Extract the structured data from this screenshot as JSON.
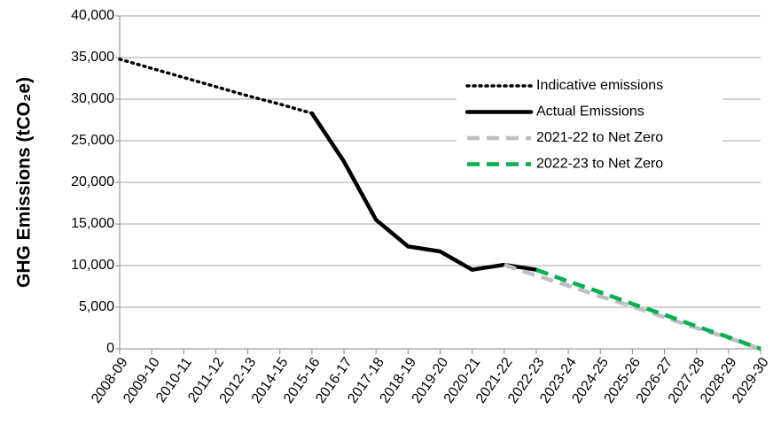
{
  "chart_data": {
    "type": "line",
    "y_label": "GHG Emissions (tCO₂e)",
    "categories": [
      "2008-09",
      "2009-10",
      "2010-11",
      "2011-12",
      "2012-13",
      "2014-15",
      "2015-16",
      "2016-17",
      "2017-18",
      "2018-19",
      "2019-20",
      "2020-21",
      "2021-22",
      "2022-23",
      "2023-24",
      "2024-25",
      "2025-26",
      "2026-27",
      "2027-28",
      "2028-29",
      "2029-30"
    ],
    "series": [
      {
        "name": "Indicative emissions",
        "color": "#000000",
        "line_style": "dotted",
        "values": [
          34800,
          33700,
          32600,
          31500,
          30400,
          29400,
          28300,
          null,
          null,
          null,
          null,
          null,
          null,
          null,
          null,
          null,
          null,
          null,
          null,
          null,
          null
        ]
      },
      {
        "name": "Actual Emissions",
        "color": "#000000",
        "line_style": "solid",
        "values": [
          null,
          null,
          null,
          null,
          null,
          null,
          28300,
          22500,
          15500,
          12300,
          11700,
          9500,
          10100,
          9500,
          null,
          null,
          null,
          null,
          null,
          null,
          null
        ]
      },
      {
        "name": "2021-22 to Net Zero",
        "color": "#bfbfbf",
        "line_style": "dashed",
        "values": [
          null,
          null,
          null,
          null,
          null,
          null,
          null,
          null,
          null,
          null,
          null,
          null,
          10100,
          8800,
          7600,
          6300,
          5100,
          3800,
          2500,
          1300,
          0
        ]
      },
      {
        "name": "2022-23 to Net Zero",
        "color": "#00b050",
        "line_style": "dashed",
        "values": [
          null,
          null,
          null,
          null,
          null,
          null,
          null,
          null,
          null,
          null,
          null,
          null,
          null,
          9500,
          8100,
          6800,
          5400,
          4100,
          2700,
          1400,
          0
        ]
      }
    ],
    "ylim": [
      0,
      40000
    ],
    "yticks": [
      0,
      {
        "value": 5000,
        "label": "5,000"
      },
      {
        "value": 10000,
        "label": "10,000"
      },
      {
        "value": 15000,
        "label": "15,000"
      },
      {
        "value": 20000,
        "label": "20,000"
      },
      {
        "value": 25000,
        "label": "25,000"
      },
      {
        "value": 30000,
        "label": "30,000"
      },
      {
        "value": 35000,
        "label": "35,000"
      },
      {
        "value": 40000,
        "label": "40,000"
      }
    ],
    "grid": true,
    "legend": "upper right"
  }
}
